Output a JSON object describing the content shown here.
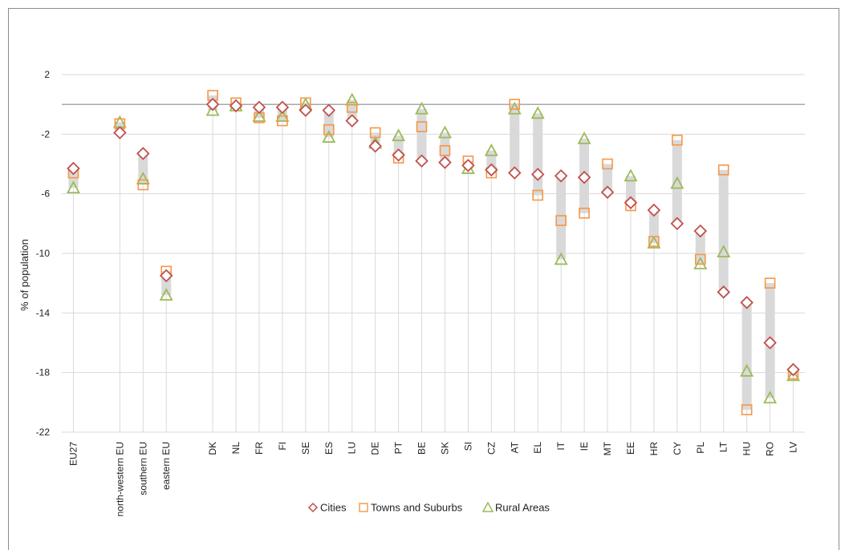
{
  "chart_data": {
    "type": "scatter",
    "title": "",
    "xlabel": "",
    "ylabel": "% of population",
    "ylim": [
      -22,
      2
    ],
    "yticks": [
      2,
      -2,
      -6,
      -10,
      -14,
      -18,
      -22
    ],
    "grid": true,
    "legend_position": "bottom",
    "categories": [
      "EU27",
      "north-western EU",
      "southern EU",
      "eastern EU",
      "DK",
      "NL",
      "FR",
      "FI",
      "SE",
      "ES",
      "LU",
      "DE",
      "PT",
      "BE",
      "SK",
      "SI",
      "CZ",
      "AT",
      "EL",
      "IT",
      "IE",
      "MT",
      "EE",
      "HR",
      "CY",
      "PL",
      "LT",
      "HU",
      "RO",
      "LV"
    ],
    "category_gaps_before": {
      "north-western EU": 1,
      "DK": 1
    },
    "series": [
      {
        "name": "Cities",
        "marker": "diamond",
        "color": "#c0504d",
        "values": [
          -4.3,
          -1.9,
          -3.3,
          -11.5,
          0,
          -0.1,
          -0.2,
          -0.2,
          -0.4,
          -0.4,
          -1.1,
          -2.8,
          -3.4,
          -3.8,
          -3.9,
          -4.1,
          -4.4,
          -4.6,
          -4.7,
          -4.8,
          -4.9,
          -5.9,
          -6.6,
          -7.1,
          -8.0,
          -8.5,
          -12.6,
          -13.3,
          -16.0,
          -17.8
        ]
      },
      {
        "name": "Towns and Suburbs",
        "marker": "square",
        "color": "#f79646",
        "values": [
          -4.6,
          -1.3,
          -5.4,
          -11.2,
          0.6,
          0.1,
          -0.9,
          -1.1,
          0.1,
          -1.7,
          -0.2,
          -1.9,
          -3.6,
          -1.5,
          -3.1,
          -3.8,
          -4.6,
          0,
          -6.1,
          -7.8,
          -7.3,
          -4.0,
          -6.8,
          -9.2,
          -2.4,
          -10.4,
          -4.4,
          -20.5,
          -12.0,
          -18.1
        ]
      },
      {
        "name": "Rural Areas",
        "marker": "triangle",
        "color": "#9bbb59",
        "values": [
          -5.6,
          -1.2,
          -5.0,
          -12.8,
          -0.4,
          -0.1,
          -0.8,
          -0.8,
          0,
          -2.2,
          0.3,
          -2.6,
          -2.1,
          -0.3,
          -1.9,
          -4.3,
          -3.1,
          -0.3,
          -0.6,
          -10.4,
          -2.3,
          null,
          -4.8,
          -9.3,
          -5.3,
          -10.7,
          -9.9,
          -17.9,
          -19.7,
          -18.2
        ]
      }
    ]
  }
}
